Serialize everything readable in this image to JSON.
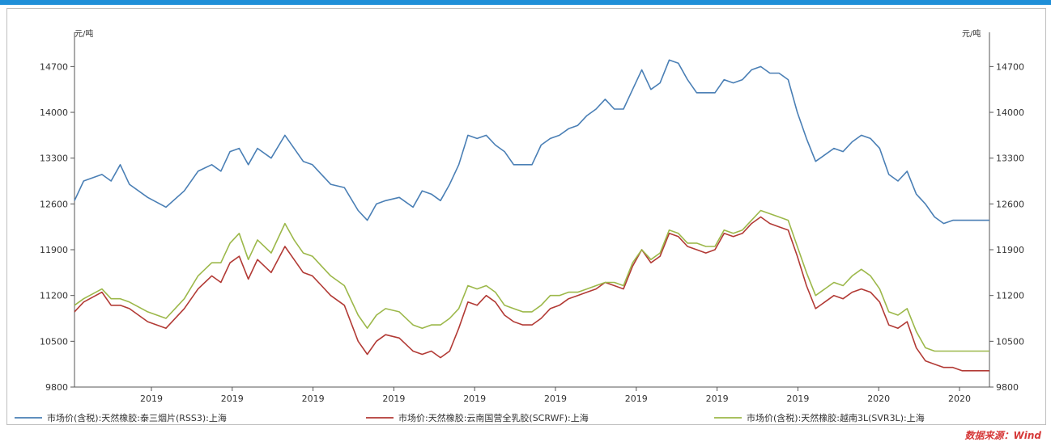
{
  "colors": {
    "topbar": "#1f8fd8",
    "series_blue": "#4a7fb5",
    "series_red": "#b23a35",
    "series_green": "#9cb84a",
    "axis": "#555555",
    "source": "#d63a3a"
  },
  "chart_data": {
    "type": "line",
    "title": "",
    "xlabel": "",
    "ylabel_left": "元/吨",
    "ylabel_right": "元/吨",
    "ylim": [
      9800,
      15100
    ],
    "yticks": [
      9800,
      10500,
      11200,
      11900,
      12600,
      13300,
      14000,
      14700
    ],
    "xticks": [
      "2019",
      "2019",
      "2019",
      "2019",
      "2019",
      "2019",
      "2019",
      "2019",
      "2019",
      "2020",
      "2020"
    ],
    "xlim": [
      0,
      100
    ],
    "grid": false,
    "legend_position": "bottom",
    "source": "数据来源：Wind",
    "series": [
      {
        "name": "市场价(含税):天然橡胶:泰三烟片(RSS3):上海",
        "color_key": "series_blue",
        "x": [
          0,
          1,
          3,
          4,
          5,
          6,
          8,
          10,
          12,
          13.5,
          15,
          16,
          17,
          18,
          19,
          20,
          21.5,
          23,
          24,
          25,
          26,
          27,
          28,
          29.5,
          31,
          32,
          33,
          34,
          35.5,
          37,
          38,
          39,
          40,
          41,
          42,
          43,
          44,
          45,
          46,
          47,
          48,
          49,
          50,
          51,
          52,
          53,
          54,
          55,
          56,
          57,
          58,
          59,
          60,
          61,
          62,
          63,
          64,
          65,
          66,
          67,
          68,
          69,
          70,
          71,
          72,
          73,
          74,
          75,
          76,
          77,
          78,
          79,
          80,
          81,
          82,
          83,
          84,
          85,
          86,
          87,
          88,
          89,
          90,
          91,
          92,
          93,
          94,
          95,
          96,
          97,
          98,
          99,
          100
        ],
        "values": [
          12650,
          12950,
          13050,
          12950,
          13200,
          12900,
          12700,
          12550,
          12800,
          13100,
          13200,
          13100,
          13400,
          13450,
          13200,
          13450,
          13300,
          13650,
          13450,
          13250,
          13200,
          13050,
          12900,
          12850,
          12500,
          12350,
          12600,
          12650,
          12700,
          12550,
          12800,
          12750,
          12650,
          12900,
          13200,
          13650,
          13600,
          13650,
          13500,
          13400,
          13200,
          13200,
          13200,
          13500,
          13600,
          13650,
          13750,
          13800,
          13950,
          14050,
          14200,
          14050,
          14050,
          14350,
          14650,
          14350,
          14450,
          14800,
          14750,
          14500,
          14300,
          14300,
          14300,
          14500,
          14450,
          14500,
          14650,
          14700,
          14600,
          14600,
          14500,
          14000,
          13600,
          13250,
          13350,
          13450,
          13400,
          13550,
          13650,
          13600,
          13450,
          13050,
          12950,
          13100,
          12750,
          12600,
          12400,
          12300,
          12350,
          12350,
          12350,
          12350,
          12350
        ]
      },
      {
        "name": "市场价:天然橡胶:云南国营全乳胶(SCRWF):上海",
        "color_key": "series_red",
        "x": [
          0,
          1,
          3,
          4,
          5,
          6,
          8,
          10,
          12,
          13.5,
          15,
          16,
          17,
          18,
          19,
          20,
          21.5,
          23,
          24,
          25,
          26,
          27,
          28,
          29.5,
          31,
          32,
          33,
          34,
          35.5,
          37,
          38,
          39,
          40,
          41,
          42,
          43,
          44,
          45,
          46,
          47,
          48,
          49,
          50,
          51,
          52,
          53,
          54,
          55,
          56,
          57,
          58,
          59,
          60,
          61,
          62,
          63,
          64,
          65,
          66,
          67,
          68,
          69,
          70,
          71,
          72,
          73,
          74,
          75,
          76,
          77,
          78,
          79,
          80,
          81,
          82,
          83,
          84,
          85,
          86,
          87,
          88,
          89,
          90,
          91,
          92,
          93,
          94,
          95,
          96,
          97,
          98,
          99,
          100
        ],
        "values": [
          10950,
          11100,
          11250,
          11050,
          11050,
          11000,
          10800,
          10700,
          11000,
          11300,
          11500,
          11400,
          11700,
          11800,
          11450,
          11750,
          11550,
          11950,
          11750,
          11550,
          11500,
          11350,
          11200,
          11050,
          10500,
          10300,
          10500,
          10600,
          10550,
          10350,
          10300,
          10350,
          10250,
          10350,
          10700,
          11100,
          11050,
          11200,
          11100,
          10900,
          10800,
          10750,
          10750,
          10850,
          11000,
          11050,
          11150,
          11200,
          11250,
          11300,
          11400,
          11350,
          11300,
          11650,
          11900,
          11700,
          11800,
          12150,
          12100,
          11950,
          11900,
          11850,
          11900,
          12150,
          12100,
          12150,
          12300,
          12400,
          12300,
          12250,
          12200,
          11800,
          11350,
          11000,
          11100,
          11200,
          11150,
          11250,
          11300,
          11250,
          11100,
          10750,
          10700,
          10800,
          10400,
          10200,
          10150,
          10100,
          10100,
          10050,
          10050,
          10050,
          10050
        ]
      },
      {
        "name": "市场价(含税):天然橡胶:越南3L(SVR3L):上海",
        "color_key": "series_green",
        "x": [
          0,
          1,
          3,
          4,
          5,
          6,
          8,
          10,
          12,
          13.5,
          15,
          16,
          17,
          18,
          19,
          20,
          21.5,
          23,
          24,
          25,
          26,
          27,
          28,
          29.5,
          31,
          32,
          33,
          34,
          35.5,
          37,
          38,
          39,
          40,
          41,
          42,
          43,
          44,
          45,
          46,
          47,
          48,
          49,
          50,
          51,
          52,
          53,
          54,
          55,
          56,
          57,
          58,
          59,
          60,
          61,
          62,
          63,
          64,
          65,
          66,
          67,
          68,
          69,
          70,
          71,
          72,
          73,
          74,
          75,
          76,
          77,
          78,
          79,
          80,
          81,
          82,
          83,
          84,
          85,
          86,
          87,
          88,
          89,
          90,
          91,
          92,
          93,
          94,
          95,
          96,
          97,
          98,
          99,
          100
        ],
        "values": [
          11050,
          11150,
          11300,
          11150,
          11150,
          11100,
          10950,
          10850,
          11150,
          11500,
          11700,
          11700,
          12000,
          12150,
          11750,
          12050,
          11850,
          12300,
          12050,
          11850,
          11800,
          11650,
          11500,
          11350,
          10900,
          10700,
          10900,
          11000,
          10950,
          10750,
          10700,
          10750,
          10750,
          10850,
          11000,
          11350,
          11300,
          11350,
          11250,
          11050,
          11000,
          10950,
          10950,
          11050,
          11200,
          11200,
          11250,
          11250,
          11300,
          11350,
          11400,
          11400,
          11350,
          11700,
          11900,
          11750,
          11850,
          12200,
          12150,
          12000,
          12000,
          11950,
          11950,
          12200,
          12150,
          12200,
          12350,
          12500,
          12450,
          12400,
          12350,
          11950,
          11550,
          11200,
          11300,
          11400,
          11350,
          11500,
          11600,
          11500,
          11300,
          10950,
          10900,
          11000,
          10650,
          10400,
          10350,
          10350,
          10350,
          10350,
          10350,
          10350,
          10350
        ]
      }
    ]
  }
}
